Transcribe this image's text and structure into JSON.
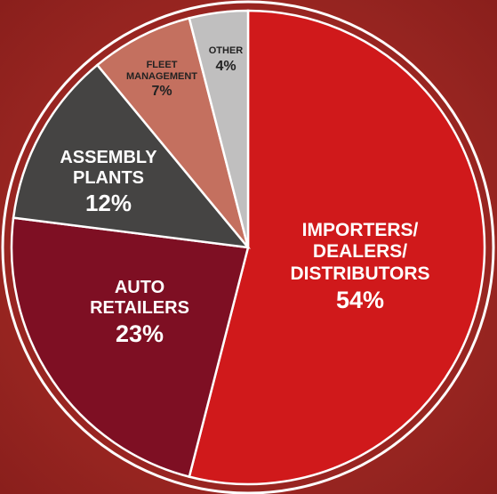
{
  "chart_data": {
    "type": "pie",
    "categories": [
      "IMPORTERS/ DEALERS/ DISTRIBUTORS",
      "AUTO RETAILERS",
      "ASSEMBLY PLANTS",
      "FLEET MANAGEMENT",
      "OTHER"
    ],
    "values": [
      54,
      23,
      12,
      7,
      4
    ],
    "value_labels": [
      "54%",
      "23%",
      "12%",
      "7%",
      "4%"
    ],
    "colors": [
      "#d0191b",
      "#7e0f23",
      "#454443",
      "#c4705f",
      "#c0bfbf"
    ],
    "start_angle": 0,
    "direction": "clockwise"
  }
}
